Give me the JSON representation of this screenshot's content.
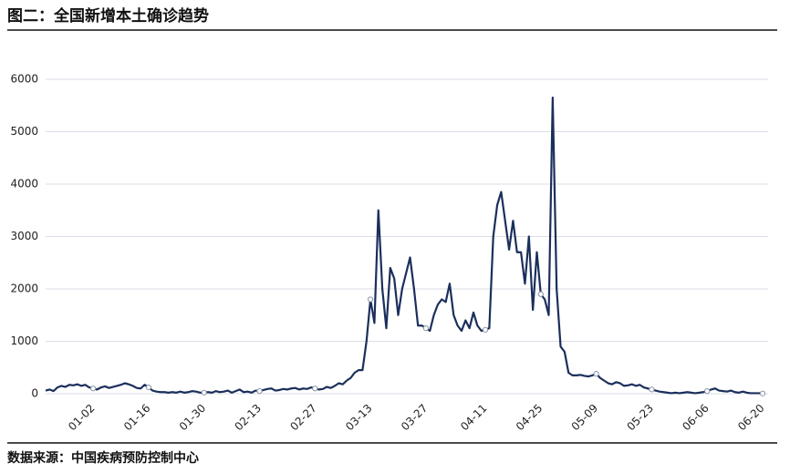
{
  "chart_data": {
    "type": "line",
    "title": "图二：全国新增本土确诊趋势",
    "source": "数据来源：中国疾病预防控制中心",
    "categories": [
      null,
      null,
      null,
      null,
      null,
      null,
      null,
      null,
      null,
      null,
      null,
      null,
      "01-02",
      null,
      null,
      null,
      null,
      null,
      null,
      null,
      null,
      null,
      null,
      null,
      null,
      null,
      "01-16",
      null,
      null,
      null,
      null,
      null,
      null,
      null,
      null,
      null,
      null,
      null,
      null,
      null,
      "01-30",
      null,
      null,
      null,
      null,
      null,
      null,
      null,
      null,
      null,
      null,
      null,
      null,
      null,
      "02-13",
      null,
      null,
      null,
      null,
      null,
      null,
      null,
      null,
      null,
      null,
      null,
      null,
      null,
      "02-27",
      null,
      null,
      null,
      null,
      null,
      null,
      null,
      null,
      null,
      null,
      null,
      null,
      null,
      "03-13",
      null,
      null,
      null,
      null,
      null,
      null,
      null,
      null,
      null,
      null,
      null,
      null,
      null,
      "03-27",
      null,
      null,
      null,
      null,
      null,
      null,
      null,
      null,
      null,
      null,
      null,
      null,
      null,
      null,
      "04-11",
      null,
      null,
      null,
      null,
      null,
      null,
      null,
      null,
      null,
      null,
      null,
      null,
      null,
      "04-25",
      null,
      null,
      null,
      null,
      null,
      null,
      null,
      null,
      null,
      null,
      null,
      null,
      null,
      "05-09",
      null,
      null,
      null,
      null,
      null,
      null,
      null,
      null,
      null,
      null,
      null,
      null,
      null,
      "05-23",
      null,
      null,
      null,
      null,
      null,
      null,
      null,
      null,
      null,
      null,
      null,
      null,
      null,
      "06-06",
      null,
      null,
      null,
      null,
      null,
      null,
      null,
      null,
      null,
      null,
      null,
      null,
      null,
      "06-20"
    ],
    "values": [
      60,
      80,
      50,
      120,
      150,
      130,
      170,
      160,
      180,
      150,
      170,
      120,
      100,
      80,
      120,
      140,
      110,
      130,
      150,
      170,
      200,
      180,
      150,
      110,
      100,
      170,
      120,
      60,
      40,
      30,
      30,
      20,
      30,
      20,
      40,
      20,
      30,
      50,
      40,
      20,
      20,
      30,
      20,
      50,
      30,
      40,
      60,
      20,
      50,
      80,
      30,
      40,
      20,
      60,
      50,
      70,
      90,
      100,
      60,
      70,
      90,
      80,
      100,
      110,
      80,
      100,
      90,
      120,
      100,
      80,
      90,
      130,
      110,
      150,
      200,
      180,
      250,
      300,
      400,
      450,
      450,
      1000,
      1800,
      1350,
      3500,
      2000,
      1250,
      2400,
      2200,
      1500,
      2000,
      2300,
      2600,
      2000,
      1300,
      1300,
      1250,
      1200,
      1500,
      1700,
      1800,
      1750,
      2100,
      1500,
      1300,
      1200,
      1400,
      1250,
      1550,
      1300,
      1200,
      1220,
      1250,
      3000,
      3600,
      3850,
      3300,
      2750,
      3300,
      2700,
      2700,
      2100,
      3000,
      1600,
      2700,
      1900,
      1800,
      1500,
      5650,
      2000,
      900,
      800,
      400,
      350,
      350,
      360,
      340,
      330,
      350,
      380,
      300,
      250,
      200,
      180,
      220,
      200,
      150,
      160,
      180,
      150,
      170,
      120,
      100,
      80,
      60,
      40,
      30,
      20,
      10,
      20,
      10,
      20,
      30,
      20,
      10,
      20,
      30,
      50,
      80,
      100,
      60,
      50,
      40,
      60,
      30,
      20,
      40,
      20,
      10,
      10,
      10,
      5
    ],
    "color": "#1b2f5c",
    "ylim": [
      0,
      6000
    ],
    "yticks": [
      0,
      1000,
      2000,
      3000,
      4000,
      5000,
      6000
    ],
    "grid": true
  }
}
